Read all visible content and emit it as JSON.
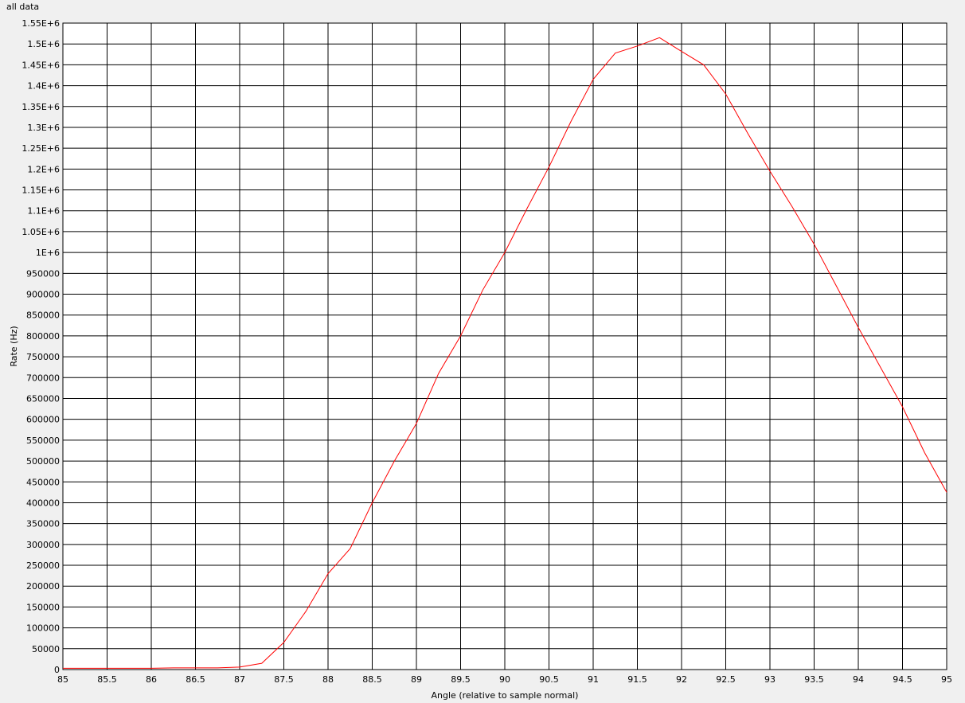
{
  "window": {
    "title": "all data"
  },
  "chart_data": {
    "type": "line",
    "title": "",
    "xlabel": "Angle (relative to sample normal)",
    "ylabel": "Rate (Hz)",
    "xlim": [
      85,
      95
    ],
    "ylim": [
      0,
      1550000
    ],
    "grid": true,
    "x_ticks": [
      "85",
      "85.5",
      "86",
      "86.5",
      "87",
      "87.5",
      "88",
      "88.5",
      "89",
      "89.5",
      "90",
      "90.5",
      "91",
      "91.5",
      "92",
      "92.5",
      "93",
      "93.5",
      "94",
      "94.5",
      "95"
    ],
    "y_ticks": [
      "0",
      "50000",
      "100000",
      "150000",
      "200000",
      "250000",
      "300000",
      "350000",
      "400000",
      "450000",
      "500000",
      "550000",
      "600000",
      "650000",
      "700000",
      "750000",
      "800000",
      "850000",
      "900000",
      "950000",
      "1E+6",
      "1.05E+6",
      "1.1E+6",
      "1.15E+6",
      "1.2E+6",
      "1.25E+6",
      "1.3E+6",
      "1.35E+6",
      "1.4E+6",
      "1.45E+6",
      "1.5E+6",
      "1.55E+6"
    ],
    "series": [
      {
        "color": "#ff0000",
        "x": [
          85,
          85.25,
          85.5,
          85.75,
          86,
          86.25,
          86.5,
          86.75,
          87,
          87.25,
          87.5,
          87.75,
          88,
          88.25,
          88.5,
          88.75,
          89,
          89.25,
          89.5,
          89.75,
          90,
          90.25,
          90.5,
          90.75,
          91,
          91.25,
          91.5,
          91.75,
          92,
          92.25,
          92.5,
          92.75,
          93,
          93.25,
          93.5,
          93.75,
          94,
          94.25,
          94.5,
          94.75,
          95
        ],
        "y": [
          3000,
          3000,
          3000,
          3000,
          3000,
          4000,
          4000,
          4000,
          6000,
          15000,
          65000,
          140000,
          230000,
          290000,
          400000,
          500000,
          590000,
          710000,
          800000,
          910000,
          1000000,
          1105000,
          1205000,
          1315000,
          1415000,
          1478000,
          1495000,
          1515000,
          1482000,
          1450000,
          1380000,
          1285000,
          1195000,
          1110000,
          1020000,
          920000,
          820000,
          725000,
          630000,
          520000,
          425000
        ]
      }
    ]
  }
}
